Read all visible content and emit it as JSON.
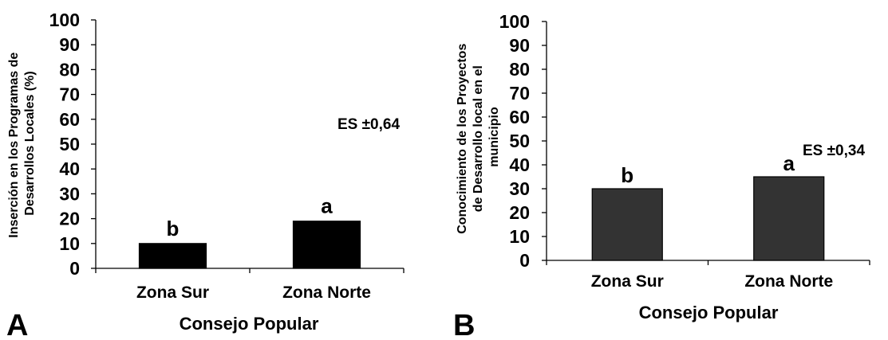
{
  "chart_data": [
    {
      "type": "bar",
      "panel_label": "A",
      "categories": [
        "Zona Sur",
        "Zona Norte"
      ],
      "values": [
        10,
        19
      ],
      "bar_labels": [
        "b",
        "a"
      ],
      "xlabel": "Consejo Popular",
      "ylabel": [
        "Inserción en los Programas de",
        "Desarrollos Locales (%)"
      ],
      "ylim": [
        0,
        100
      ],
      "yticks": [
        0,
        10,
        20,
        30,
        40,
        50,
        60,
        70,
        80,
        90,
        100
      ],
      "annotation": "ES ±0,64",
      "bar_color": "#000000",
      "grid": false
    },
    {
      "type": "bar",
      "panel_label": "B",
      "categories": [
        "Zona Sur",
        "Zona Norte"
      ],
      "values": [
        30,
        35
      ],
      "bar_labels": [
        "b",
        "a"
      ],
      "xlabel": "Consejo Popular",
      "ylabel": [
        "Conocimiento de los Proyectos",
        "de Desarrollo local en el",
        "municipio"
      ],
      "ylim": [
        0,
        100
      ],
      "yticks": [
        0,
        10,
        20,
        30,
        40,
        50,
        60,
        70,
        80,
        90,
        100
      ],
      "annotation": "ES ±0,34",
      "bar_color": "#333333",
      "grid": false
    }
  ]
}
